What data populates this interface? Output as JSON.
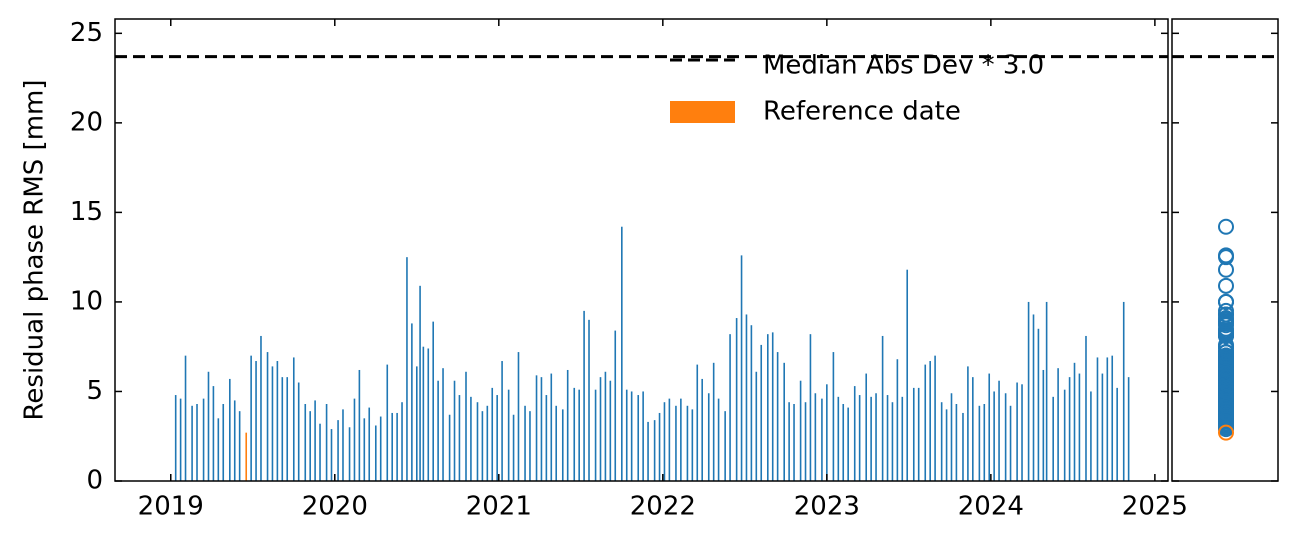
{
  "chart_data": {
    "type": "bar",
    "ylabel": "Residual phase RMS [mm]",
    "xlim": [
      2018.66,
      2025.08
    ],
    "xticks": [
      2019,
      2020,
      2021,
      2022,
      2023,
      2024,
      2025
    ],
    "ylim": [
      0,
      25.8
    ],
    "yticks": [
      0,
      5,
      10,
      15,
      20,
      25
    ],
    "legend": "upper right",
    "series": [
      {
        "color": "#1f77b4",
        "x": [
          2019.03,
          2019.06,
          2019.09,
          2019.13,
          2019.16,
          2019.2,
          2019.23,
          2019.26,
          2019.29,
          2019.32,
          2019.36,
          2019.39,
          2019.42,
          2019.49,
          2019.52,
          2019.55,
          2019.59,
          2019.62,
          2019.65,
          2019.68,
          2019.71,
          2019.75,
          2019.78,
          2019.82,
          2019.85,
          2019.88,
          2019.91,
          2019.95,
          2019.98,
          2020.02,
          2020.05,
          2020.09,
          2020.12,
          2020.15,
          2020.18,
          2020.21,
          2020.25,
          2020.28,
          2020.32,
          2020.35,
          2020.38,
          2020.41,
          2020.44,
          2020.47,
          2020.5,
          2020.52,
          2020.54,
          2020.57,
          2020.6,
          2020.63,
          2020.66,
          2020.7,
          2020.73,
          2020.76,
          2020.8,
          2020.83,
          2020.87,
          2020.9,
          2020.93,
          2020.96,
          2020.99,
          2021.02,
          2021.06,
          2021.09,
          2021.12,
          2021.16,
          2021.19,
          2021.23,
          2021.26,
          2021.29,
          2021.32,
          2021.35,
          2021.39,
          2021.42,
          2021.46,
          2021.49,
          2021.52,
          2021.55,
          2021.59,
          2021.62,
          2021.65,
          2021.68,
          2021.71,
          2021.75,
          2021.78,
          2021.81,
          2021.85,
          2021.88,
          2021.91,
          2021.95,
          2021.98,
          2022.01,
          2022.04,
          2022.08,
          2022.11,
          2022.15,
          2022.18,
          2022.21,
          2022.24,
          2022.28,
          2022.31,
          2022.34,
          2022.38,
          2022.41,
          2022.45,
          2022.48,
          2022.51,
          2022.54,
          2022.57,
          2022.6,
          2022.64,
          2022.67,
          2022.7,
          2022.74,
          2022.77,
          2022.8,
          2022.84,
          2022.87,
          2022.9,
          2022.93,
          2022.97,
          2023.0,
          2023.04,
          2023.07,
          2023.1,
          2023.13,
          2023.17,
          2023.2,
          2023.24,
          2023.27,
          2023.3,
          2023.34,
          2023.37,
          2023.4,
          2023.43,
          2023.46,
          2023.49,
          2023.53,
          2023.56,
          2023.6,
          2023.63,
          2023.66,
          2023.7,
          2023.73,
          2023.76,
          2023.79,
          2023.83,
          2023.86,
          2023.89,
          2023.93,
          2023.96,
          2023.99,
          2024.02,
          2024.05,
          2024.09,
          2024.12,
          2024.16,
          2024.19,
          2024.23,
          2024.26,
          2024.29,
          2024.32,
          2024.34,
          2024.38,
          2024.41,
          2024.45,
          2024.48,
          2024.51,
          2024.54,
          2024.58,
          2024.61,
          2024.65,
          2024.68,
          2024.71,
          2024.74,
          2024.77,
          2024.81,
          2024.84
        ],
        "values": [
          4.8,
          4.6,
          7.0,
          4.2,
          4.3,
          4.6,
          6.1,
          5.3,
          3.5,
          4.3,
          5.7,
          4.5,
          3.9,
          7.0,
          6.7,
          8.1,
          7.2,
          6.4,
          6.7,
          5.8,
          5.8,
          6.9,
          5.5,
          4.3,
          3.9,
          4.5,
          3.2,
          4.3,
          2.9,
          3.4,
          4.0,
          3.0,
          4.6,
          6.2,
          3.5,
          4.1,
          3.1,
          3.6,
          6.5,
          3.8,
          3.8,
          4.4,
          12.5,
          8.8,
          6.4,
          10.9,
          7.5,
          7.4,
          8.9,
          5.6,
          6.3,
          3.7,
          5.6,
          4.8,
          6.1,
          4.7,
          4.4,
          3.9,
          4.2,
          5.2,
          4.8,
          6.7,
          5.1,
          3.7,
          7.2,
          4.2,
          3.9,
          5.9,
          5.8,
          4.8,
          6.0,
          4.2,
          4.0,
          6.2,
          5.2,
          5.1,
          9.5,
          9.0,
          5.1,
          5.8,
          6.1,
          5.6,
          8.4,
          14.2,
          5.1,
          5.0,
          4.8,
          5.0,
          3.3,
          3.4,
          3.8,
          4.4,
          4.6,
          4.2,
          4.6,
          4.2,
          4.0,
          6.5,
          5.7,
          4.9,
          6.6,
          4.6,
          3.9,
          8.2,
          9.1,
          12.6,
          9.3,
          8.7,
          6.1,
          7.6,
          8.2,
          8.3,
          7.2,
          6.6,
          4.4,
          4.3,
          5.6,
          4.4,
          8.2,
          4.9,
          4.6,
          5.4,
          7.2,
          4.7,
          4.3,
          4.1,
          5.3,
          4.8,
          6.0,
          4.7,
          4.9,
          8.1,
          4.8,
          4.4,
          6.8,
          4.7,
          11.8,
          5.2,
          5.2,
          6.5,
          6.7,
          7.0,
          4.4,
          4.0,
          4.9,
          4.3,
          3.8,
          6.4,
          5.8,
          4.2,
          4.3,
          6.0,
          5.0,
          5.6,
          4.9,
          4.2,
          5.5,
          5.4,
          10.0,
          9.3,
          8.5,
          6.2,
          10.0,
          4.7,
          6.3,
          5.1,
          5.8,
          6.6,
          6.0,
          8.1,
          5.0,
          6.9,
          6.0,
          6.9,
          7.0,
          5.2,
          10.0,
          5.8
        ]
      },
      {
        "name": "Reference date",
        "color": "#ff7f0e",
        "x": [
          2019.46
        ],
        "values": [
          2.7
        ]
      }
    ],
    "hline": {
      "name": "Median Abs Dev * 3.0",
      "value": 23.7,
      "color": "#000000",
      "style": "dashed"
    },
    "side_panel": {
      "type": "scatter",
      "marker": "hollow-circle"
    }
  }
}
